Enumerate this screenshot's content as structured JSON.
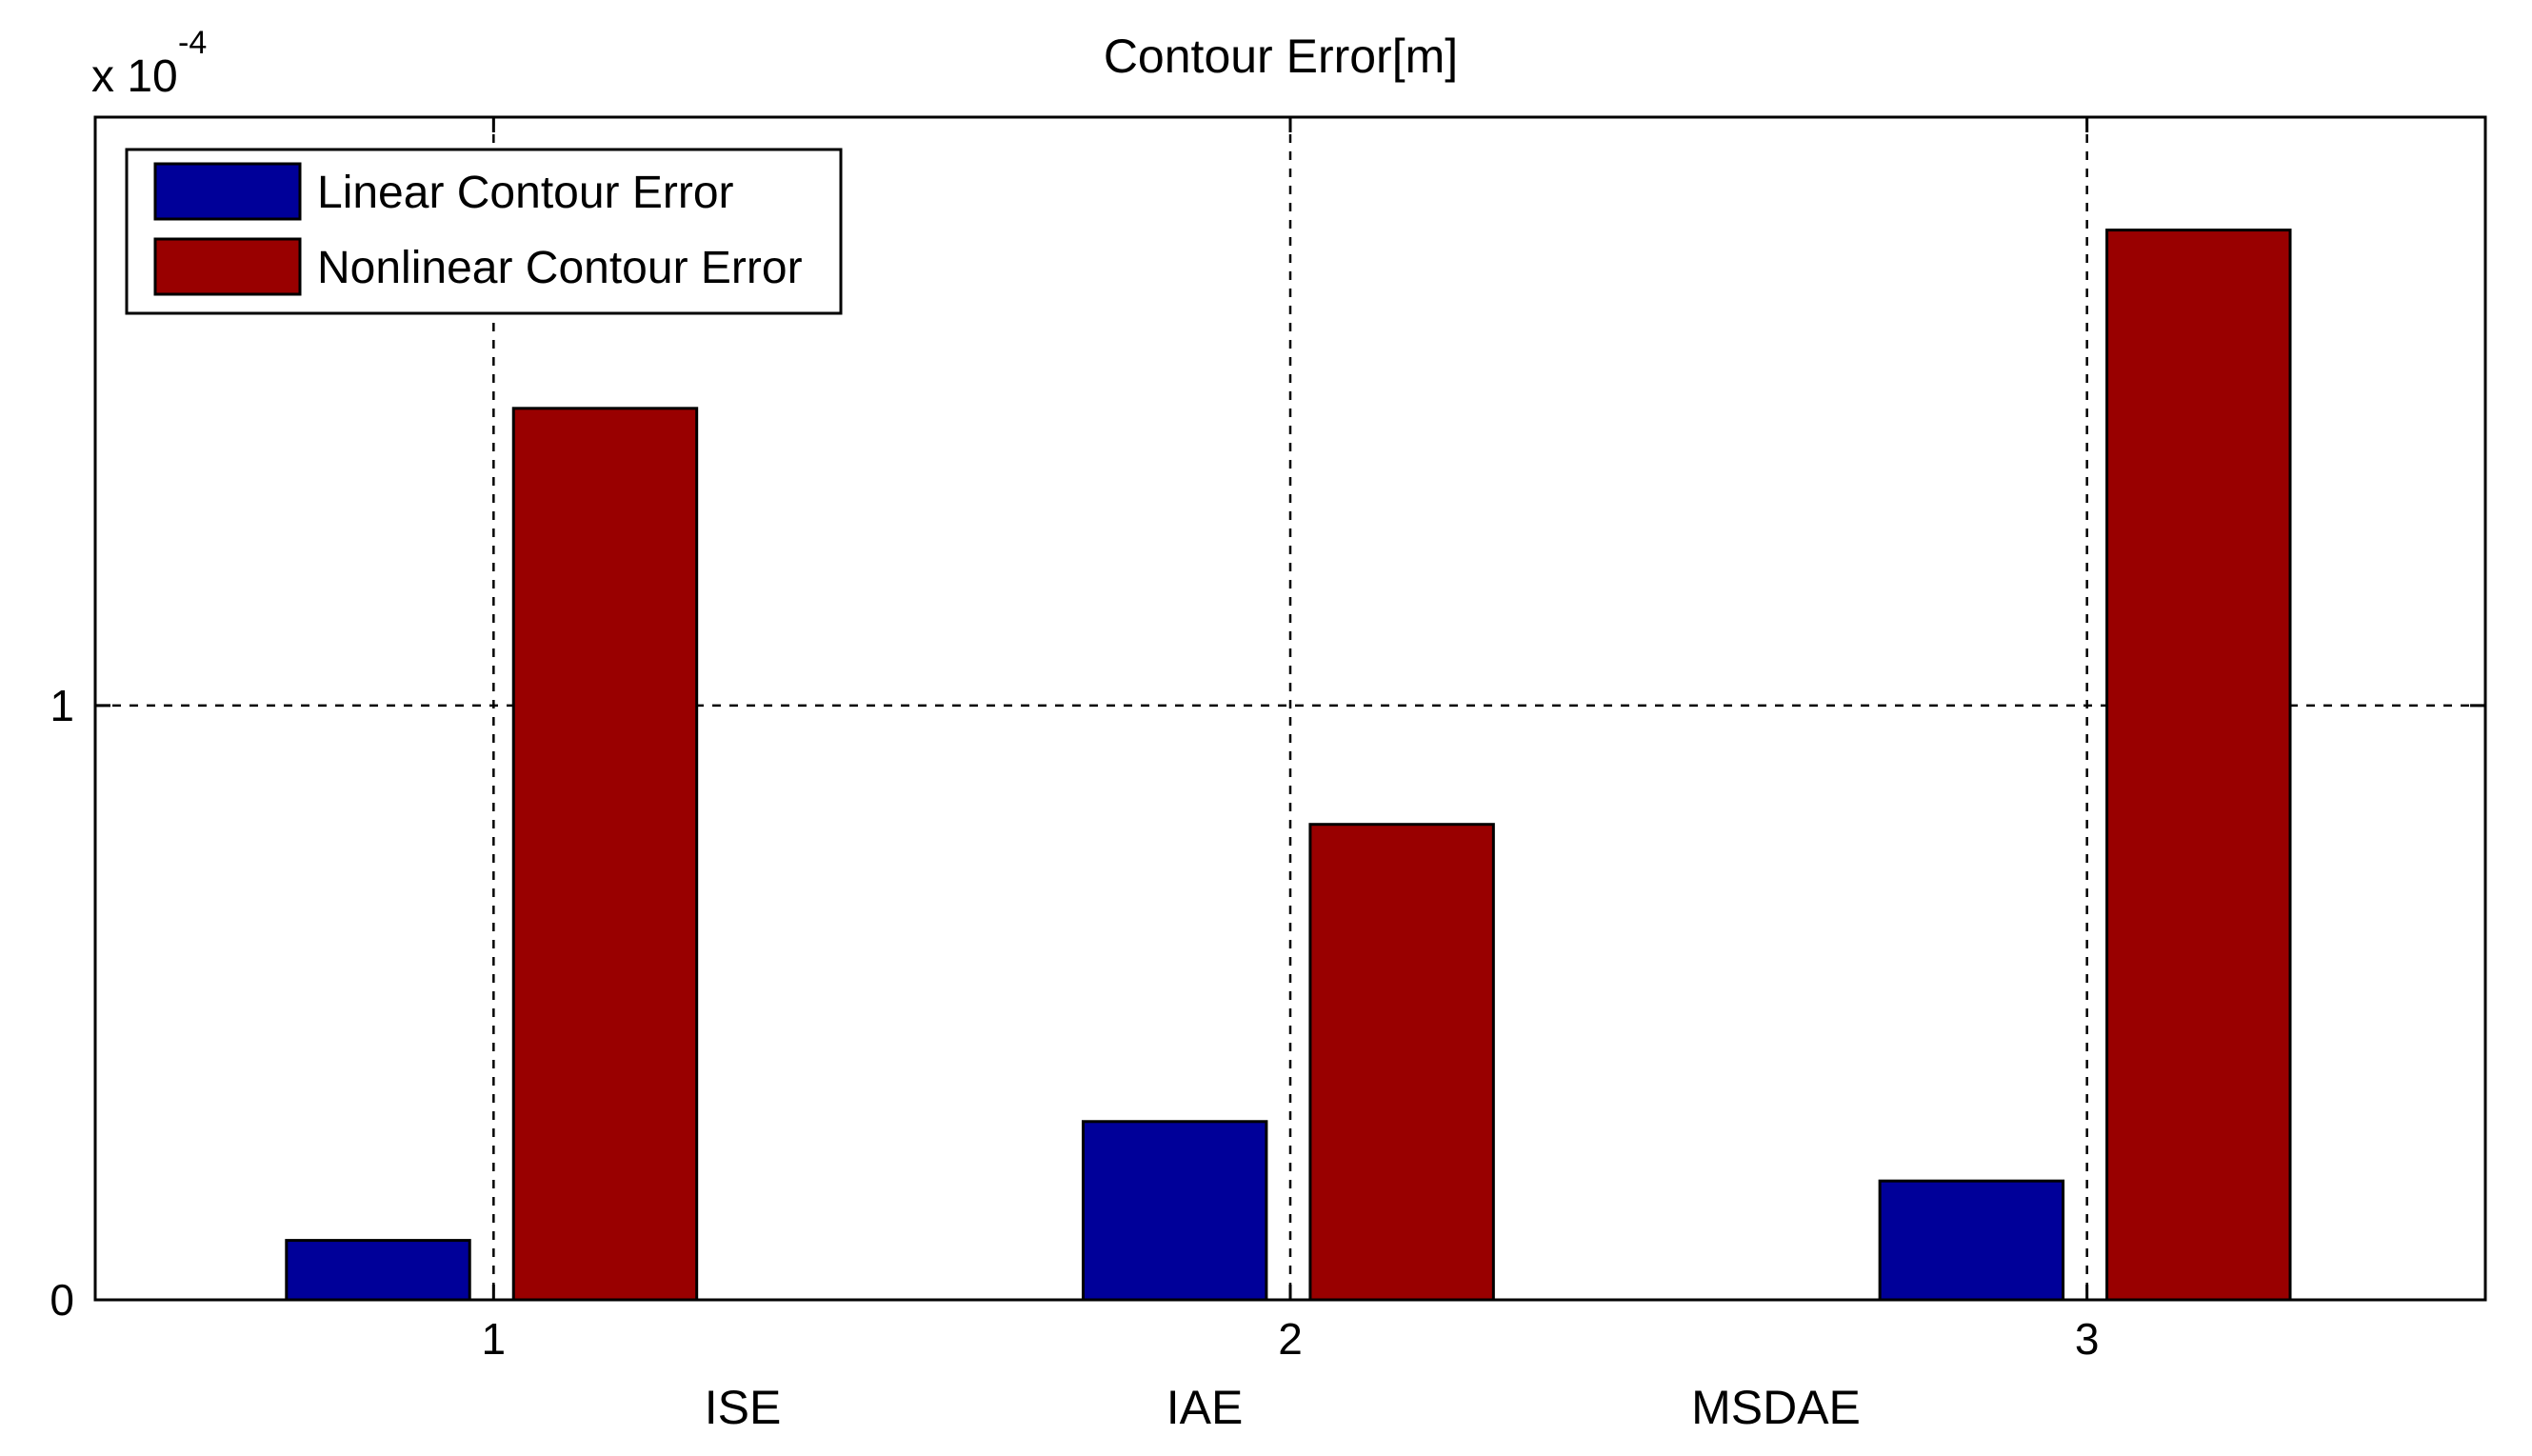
{
  "chart_data": {
    "type": "bar",
    "title": "Contour Error[m]",
    "axis_multiplier": {
      "base": "x 10",
      "exponent": "-4"
    },
    "x": [
      1,
      2,
      3
    ],
    "x_tick_labels": [
      "1",
      "2",
      "3"
    ],
    "category_labels": [
      "ISE",
      "IAE",
      "MSDAE"
    ],
    "y_tick_labels": [
      "0",
      "1"
    ],
    "y_ticks": [
      0,
      1
    ],
    "xlim": [
      0.5,
      3.5
    ],
    "ylim": [
      0,
      1.99
    ],
    "grid": true,
    "legend_position": "top-left",
    "series": [
      {
        "name": "Linear Contour Error",
        "color": "#000099",
        "values": [
          0.1,
          0.3,
          0.2
        ]
      },
      {
        "name": "Nonlinear Contour Error",
        "color": "#990000",
        "values": [
          1.5,
          0.8,
          1.8
        ]
      }
    ]
  }
}
